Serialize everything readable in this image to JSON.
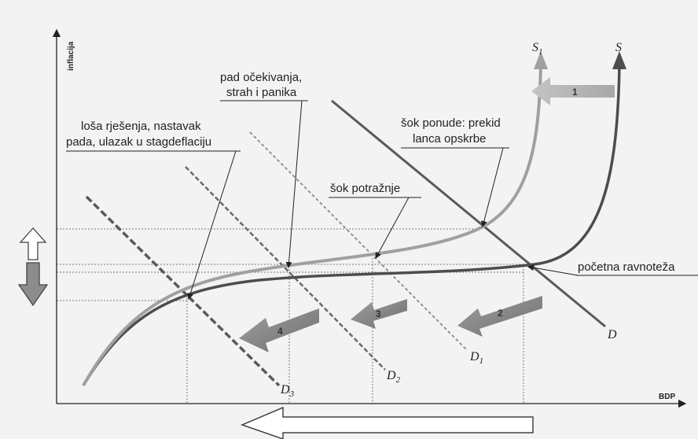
{
  "axes": {
    "y_label": "inflacija",
    "x_label": "BDP"
  },
  "curves": {
    "s1": {
      "letter": "S",
      "sub": "1"
    },
    "s": {
      "letter": "S",
      "sub": ""
    },
    "d": {
      "letter": "D",
      "sub": ""
    },
    "d1": {
      "letter": "D",
      "sub": "1"
    },
    "d2": {
      "letter": "D",
      "sub": "2"
    },
    "d3": {
      "letter": "D",
      "sub": "3"
    }
  },
  "annotations": {
    "pad_line1": "pad očekivanja,",
    "pad_line2": "strah i panika",
    "losa_line1": "loša rješenja, nastavak",
    "losa_line2": "pada, ulazak u stagdeflaciju",
    "sok_ponude_line1": "šok ponude: prekid",
    "sok_ponude_line2": "lanca opskrbe",
    "sok_potraznje": "šok potražnje",
    "pocetna": "početna ravnoteža"
  },
  "arrows": {
    "a1": "1",
    "a2": "2",
    "a3": "3",
    "a4": "4"
  },
  "colors": {
    "background": "#f3f3f3",
    "s_curve": "#555555",
    "s1_curve": "#9a9a9a",
    "d_line": "#5a5a5a",
    "arrow_fill": "#8a8a8a",
    "arrow_light": "#bdbdbd"
  }
}
